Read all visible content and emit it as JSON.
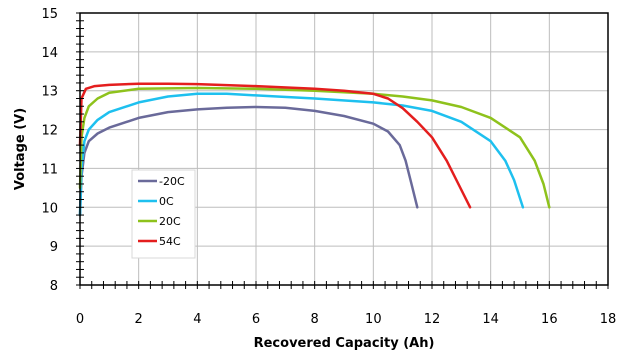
{
  "chart_data": {
    "type": "line",
    "xlabel": "Recovered Capacity (Ah)",
    "ylabel": "Voltage (V)",
    "xlim": [
      0,
      18
    ],
    "ylim": [
      8,
      15
    ],
    "x_ticks": [
      0,
      2,
      4,
      6,
      8,
      10,
      12,
      14,
      16,
      18
    ],
    "y_ticks": [
      8,
      9,
      10,
      11,
      12,
      13,
      14,
      15
    ],
    "grid": true,
    "legend_position": "left-middle",
    "series": [
      {
        "name": "-20C",
        "color": "#6a6a9a",
        "points": [
          [
            0,
            9.8
          ],
          [
            0.05,
            10.8
          ],
          [
            0.15,
            11.4
          ],
          [
            0.3,
            11.7
          ],
          [
            0.6,
            11.9
          ],
          [
            1,
            12.05
          ],
          [
            2,
            12.3
          ],
          [
            3,
            12.45
          ],
          [
            4,
            12.52
          ],
          [
            5,
            12.56
          ],
          [
            6,
            12.58
          ],
          [
            7,
            12.56
          ],
          [
            8,
            12.48
          ],
          [
            9,
            12.35
          ],
          [
            10,
            12.15
          ],
          [
            10.5,
            11.95
          ],
          [
            10.9,
            11.6
          ],
          [
            11.1,
            11.2
          ],
          [
            11.3,
            10.6
          ],
          [
            11.5,
            10.0
          ]
        ]
      },
      {
        "name": "0C",
        "color": "#1ec0ef",
        "points": [
          [
            0,
            9.8
          ],
          [
            0.05,
            11.0
          ],
          [
            0.15,
            11.7
          ],
          [
            0.3,
            12.0
          ],
          [
            0.6,
            12.25
          ],
          [
            1,
            12.45
          ],
          [
            2,
            12.7
          ],
          [
            3,
            12.85
          ],
          [
            4,
            12.92
          ],
          [
            5,
            12.92
          ],
          [
            6,
            12.88
          ],
          [
            8,
            12.8
          ],
          [
            10,
            12.7
          ],
          [
            11,
            12.62
          ],
          [
            12,
            12.48
          ],
          [
            13,
            12.2
          ],
          [
            14,
            11.7
          ],
          [
            14.5,
            11.2
          ],
          [
            14.8,
            10.7
          ],
          [
            15.1,
            10.0
          ]
        ]
      },
      {
        "name": "20C",
        "color": "#8ec21c",
        "points": [
          [
            0,
            10.5
          ],
          [
            0.05,
            11.8
          ],
          [
            0.15,
            12.3
          ],
          [
            0.3,
            12.6
          ],
          [
            0.6,
            12.8
          ],
          [
            1,
            12.95
          ],
          [
            2,
            13.05
          ],
          [
            4,
            13.07
          ],
          [
            6,
            13.05
          ],
          [
            8,
            13.0
          ],
          [
            10,
            12.92
          ],
          [
            11,
            12.85
          ],
          [
            12,
            12.75
          ],
          [
            13,
            12.58
          ],
          [
            14,
            12.3
          ],
          [
            15,
            11.8
          ],
          [
            15.5,
            11.2
          ],
          [
            15.8,
            10.6
          ],
          [
            16.0,
            10.0
          ]
        ]
      },
      {
        "name": "54C",
        "color": "#e41e1e",
        "points": [
          [
            0,
            11.6
          ],
          [
            0.05,
            12.8
          ],
          [
            0.2,
            13.05
          ],
          [
            0.5,
            13.12
          ],
          [
            1,
            13.15
          ],
          [
            2,
            13.18
          ],
          [
            3,
            13.18
          ],
          [
            4,
            13.17
          ],
          [
            6,
            13.12
          ],
          [
            8,
            13.05
          ],
          [
            9,
            13.0
          ],
          [
            10,
            12.92
          ],
          [
            10.5,
            12.8
          ],
          [
            11,
            12.55
          ],
          [
            11.5,
            12.2
          ],
          [
            12,
            11.8
          ],
          [
            12.5,
            11.2
          ],
          [
            12.9,
            10.6
          ],
          [
            13.3,
            10.0
          ]
        ]
      }
    ]
  }
}
